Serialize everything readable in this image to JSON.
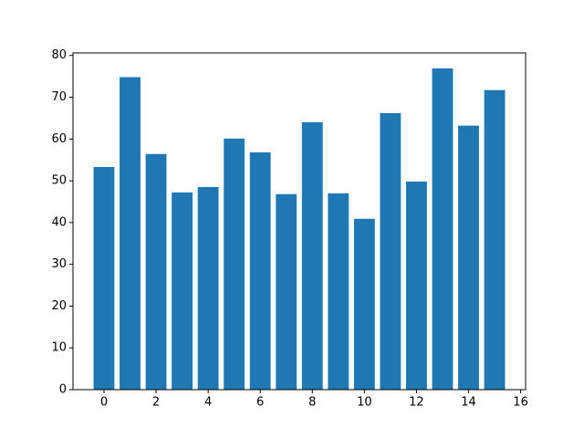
{
  "chart_data": {
    "type": "bar",
    "x": [
      0,
      1,
      2,
      3,
      4,
      5,
      6,
      7,
      8,
      9,
      10,
      11,
      12,
      13,
      14,
      15
    ],
    "values": [
      53.3,
      74.8,
      56.4,
      47.2,
      48.5,
      60.1,
      56.8,
      46.8,
      64.0,
      47.0,
      40.9,
      66.2,
      49.8,
      76.9,
      63.2,
      71.7
    ],
    "color": "#1f77b4",
    "xlim": [
      -1.19,
      16.19
    ],
    "xticks": [
      0,
      2,
      4,
      6,
      8,
      10,
      12,
      14,
      16
    ],
    "ylim": [
      0,
      80.6
    ],
    "yticks": [
      0,
      10,
      20,
      30,
      40,
      50,
      60,
      70,
      80
    ],
    "grid": false
  }
}
